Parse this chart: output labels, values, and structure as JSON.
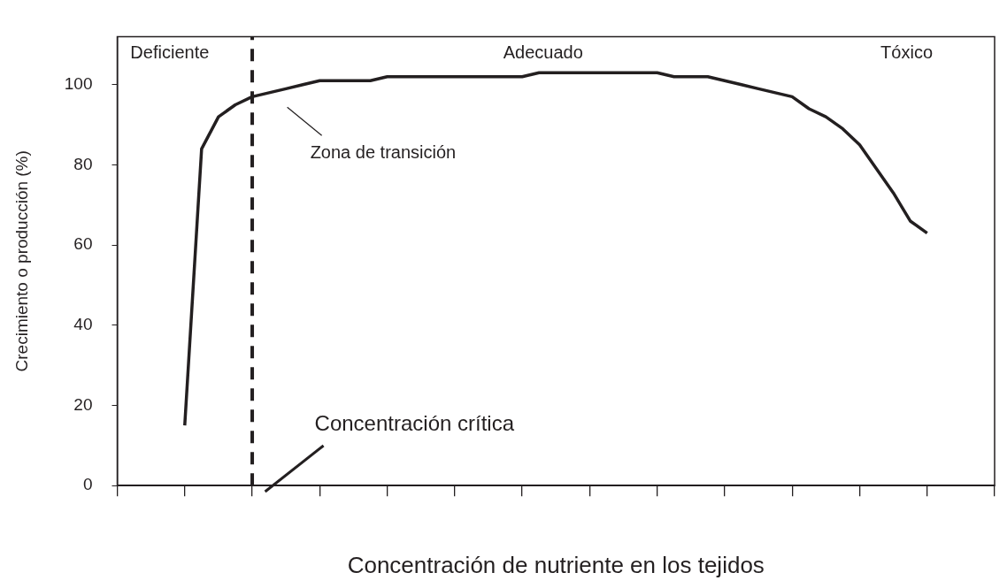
{
  "chart_data": {
    "type": "line",
    "xlabel": "Concentración de nutriente en los tejidos",
    "ylabel": "Crecimiento o producción (%)",
    "categories": [
      null,
      null,
      null,
      null,
      null,
      null,
      null,
      null,
      null,
      null,
      null,
      null,
      null,
      null,
      null,
      null,
      null,
      null,
      null,
      null,
      null,
      null,
      null,
      null,
      null,
      null,
      null,
      null,
      null,
      null,
      null,
      null,
      null,
      null,
      null,
      null,
      null,
      null,
      null,
      null,
      null,
      null,
      null,
      null,
      null
    ],
    "series": [
      {
        "color": "#231f20",
        "values": [
          15,
          84,
          92,
          95,
          97,
          98,
          99,
          100,
          101,
          101,
          101,
          101,
          102,
          102,
          102,
          102,
          102,
          102,
          102,
          102,
          102,
          103,
          103,
          103,
          103,
          103,
          103,
          103,
          103,
          102,
          102,
          102,
          101,
          100,
          99,
          98,
          97,
          94,
          92,
          89,
          85,
          79,
          73,
          66,
          63
        ]
      }
    ],
    "ylim": [
      0,
      112
    ],
    "yticks": [
      0,
      20,
      40,
      60,
      80,
      100
    ],
    "annotations": [
      "Deficiente",
      "Adecuado",
      "Tóxico",
      "Zona de transición",
      "Concentración crítica"
    ],
    "marker": "none",
    "line_style": "solid",
    "tick_labels": "y"
  }
}
